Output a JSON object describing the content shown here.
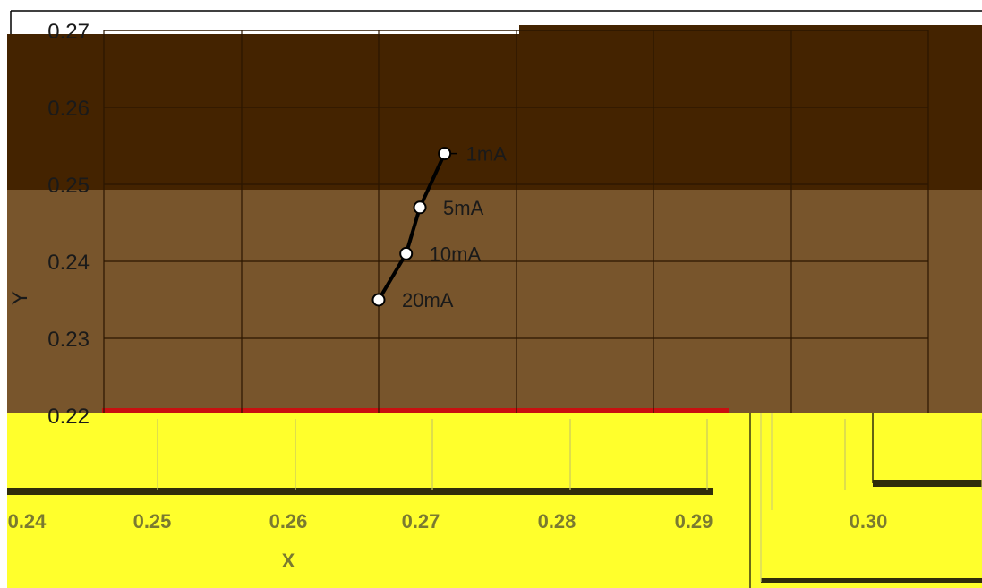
{
  "colors": {
    "band_top": "#442300",
    "band_mid": "#78552c",
    "band_bottom": "#ffff2c",
    "grid": "#2b1600",
    "series_line": "#000000",
    "marker_fill": "#ffffff",
    "glitch_strip": "#c81010"
  },
  "chart_data": {
    "type": "line",
    "title": "",
    "xlabel": "X",
    "ylabel": "Y",
    "xlim": [
      0.24,
      0.3
    ],
    "ylim": [
      0.22,
      0.27
    ],
    "x_ticks_visible": [
      "0.24",
      "0.25",
      "0.26",
      "0.27",
      "0.28",
      "0.29",
      "0.30"
    ],
    "y_ticks": [
      0.22,
      0.23,
      0.24,
      0.25,
      0.26,
      0.27
    ],
    "y_tick_labels": [
      "0.22",
      "0.23",
      "0.24",
      "0.25",
      "0.26",
      "0.27"
    ],
    "grid": true,
    "series": [
      {
        "points": [
          {
            "x": 0.2648,
            "y": 0.254,
            "label": "1mA"
          },
          {
            "x": 0.263,
            "y": 0.247,
            "label": "5mA"
          },
          {
            "x": 0.262,
            "y": 0.241,
            "label": "10mA"
          },
          {
            "x": 0.26,
            "y": 0.235,
            "label": "20mA"
          }
        ]
      }
    ]
  }
}
